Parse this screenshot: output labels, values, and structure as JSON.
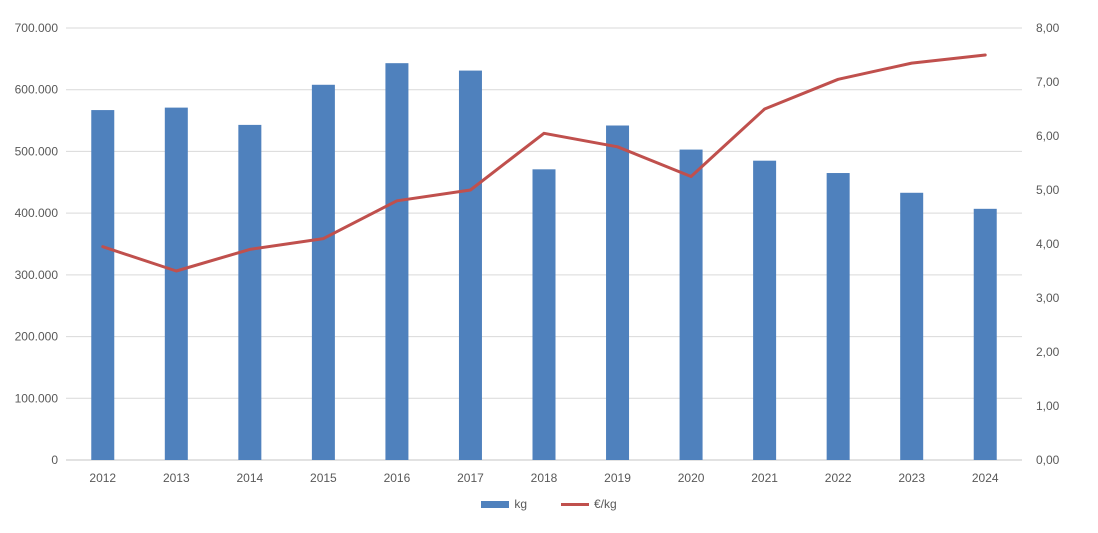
{
  "chart_data": {
    "type": "combo",
    "title": "",
    "categories": [
      "2012",
      "2013",
      "2014",
      "2015",
      "2016",
      "2017",
      "2018",
      "2019",
      "2020",
      "2021",
      "2022",
      "2023",
      "2024"
    ],
    "series": [
      {
        "name": "kg",
        "type": "bar",
        "axis": "left",
        "color": "#4f81bd",
        "values": [
          567000,
          571000,
          543000,
          608000,
          643000,
          631000,
          471000,
          542000,
          503000,
          485000,
          465000,
          433000,
          407000
        ]
      },
      {
        "name": "€/kg",
        "type": "line",
        "axis": "right",
        "color": "#c0504d",
        "values": [
          3.95,
          3.5,
          3.9,
          4.1,
          4.8,
          5.0,
          6.05,
          5.8,
          5.25,
          6.5,
          7.05,
          7.35,
          7.5
        ]
      }
    ],
    "left_axis": {
      "min": 0,
      "max": 700000,
      "step": 100000,
      "tick_labels": [
        "0",
        "100.000",
        "200.000",
        "300.000",
        "400.000",
        "500.000",
        "600.000",
        "700.000"
      ]
    },
    "right_axis": {
      "min": 0,
      "max": 8,
      "step": 1,
      "tick_labels": [
        "0,00",
        "1,00",
        "2,00",
        "3,00",
        "4,00",
        "5,00",
        "6,00",
        "7,00",
        "8,00"
      ]
    },
    "grid": true,
    "legend_position": "bottom"
  },
  "styles": {
    "text_color": "#595959",
    "gridline_color": "#d9d9d9",
    "axisline_color": "#c6c6c6",
    "background": "#ffffff"
  }
}
